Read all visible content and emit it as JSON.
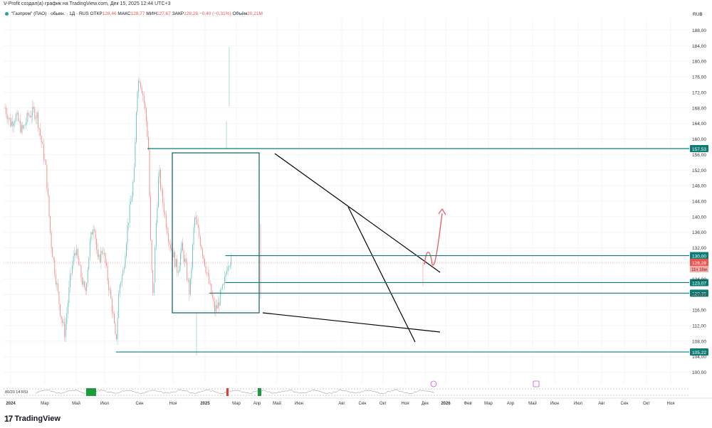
{
  "header": {
    "text": "V-Profit создал(а) график на TradingView.com, Дек 15, 2025 12:44 UTC+3"
  },
  "symbol": {
    "name": "\"Газпром\" (ПАО) · обыкн. · 1Д · RUS",
    "open_label": "ОТКР",
    "open_value": "128,46",
    "high_label": "МАКС",
    "high_value": "128,77",
    "low_label": "МИН",
    "low_value": "127,67",
    "close_label": "ЗАКР",
    "close_value": "128,28",
    "change": "−0,40 (−0,31%)",
    "volume_label": "Объём",
    "volume_value": "20,21M"
  },
  "currency": "RUB",
  "footer": {
    "logo_mark": "17",
    "logo_text": "TradingView"
  },
  "colors": {
    "up": "#26a69a",
    "down": "#ef5350",
    "teal_line": "#0d7d74",
    "trend": "#000000",
    "arrow": "#e06060",
    "grid": "#f0f3fa",
    "text": "#131722"
  },
  "chart_data": {
    "type": "candlestick",
    "y_axis": {
      "min": 97,
      "max": 191,
      "ticks": [
        "100,00",
        "104,00",
        "108,00",
        "112,00",
        "116,00",
        "120,00",
        "124,00",
        "128,00",
        "132,00",
        "136,00",
        "140,00",
        "144,00",
        "148,00",
        "152,00",
        "156,00",
        "160,00",
        "164,00",
        "168,00",
        "172,00",
        "176,00",
        "180,00",
        "184,00",
        "188,00"
      ],
      "scale": "linear"
    },
    "x_axis": {
      "labels": [
        "2024",
        "Мар",
        "Май",
        "Июл",
        "Сен",
        "Ноя",
        "2025",
        "Мар",
        "Апр",
        "Май",
        "Июн",
        "Авг",
        "Сен",
        "Окт",
        "Ноя",
        "Дек",
        "2026",
        "Фев",
        "Мар",
        "Апр",
        "Май",
        "Июн",
        "Июл",
        "Авг",
        "Сен",
        "Окт",
        "Ноя"
      ]
    },
    "price_path": {
      "note": "Approximate daily close path read from the chart",
      "anchors": [
        [
          "2024-01-02",
          168
        ],
        [
          "2024-01-20",
          164
        ],
        [
          "2024-02-05",
          166
        ],
        [
          "2024-02-25",
          162
        ],
        [
          "2024-03-15",
          166
        ],
        [
          "2024-04-01",
          167
        ],
        [
          "2024-04-12",
          166
        ],
        [
          "2024-04-28",
          158
        ],
        [
          "2024-05-10",
          152
        ],
        [
          "2024-05-25",
          134
        ],
        [
          "2024-06-10",
          124
        ],
        [
          "2024-06-25",
          115
        ],
        [
          "2024-07-08",
          110
        ],
        [
          "2024-07-25",
          124
        ],
        [
          "2024-08-10",
          132
        ],
        [
          "2024-08-25",
          126
        ],
        [
          "2024-09-10",
          120
        ],
        [
          "2024-09-25",
          133
        ],
        [
          "2024-10-08",
          139
        ],
        [
          "2024-10-20",
          128
        ],
        [
          "2024-11-05",
          132
        ],
        [
          "2024-11-20",
          124
        ],
        [
          "2024-12-05",
          116
        ],
        [
          "2024-12-16",
          107
        ],
        [
          "2024-12-26",
          122
        ],
        [
          "2025-01-08",
          126
        ],
        [
          "2025-01-22",
          138
        ],
        [
          "2025-02-03",
          145
        ],
        [
          "2025-02-12",
          152
        ],
        [
          "2025-02-20",
          173
        ],
        [
          "2025-02-28",
          176
        ],
        [
          "2025-03-10",
          172
        ],
        [
          "2025-03-20",
          166
        ],
        [
          "2025-03-28",
          158
        ],
        [
          "2025-04-05",
          130
        ],
        [
          "2025-04-12",
          118
        ],
        [
          "2025-04-20",
          136
        ],
        [
          "2025-04-30",
          152
        ],
        [
          "2025-05-08",
          146
        ],
        [
          "2025-05-20",
          140
        ],
        [
          "2025-06-01",
          134
        ],
        [
          "2025-06-15",
          130
        ],
        [
          "2025-06-28",
          126
        ],
        [
          "2025-07-10",
          132
        ],
        [
          "2025-07-22",
          128
        ],
        [
          "2025-08-05",
          120
        ],
        [
          "2025-08-20",
          140
        ],
        [
          "2025-09-01",
          136
        ],
        [
          "2025-09-12",
          132
        ],
        [
          "2025-09-22",
          128
        ],
        [
          "2025-10-02",
          124
        ],
        [
          "2025-10-12",
          120
        ],
        [
          "2025-10-22",
          116
        ],
        [
          "2025-11-01",
          117
        ],
        [
          "2025-11-10",
          120
        ],
        [
          "2025-11-20",
          122
        ],
        [
          "2025-12-01",
          128
        ],
        [
          "2025-12-08",
          129
        ],
        [
          "2025-12-15",
          128.28
        ]
      ]
    },
    "levels": [
      {
        "label": "157,53",
        "value": 157.53,
        "from": "2025-03-25"
      },
      {
        "label": "130,00",
        "value": 130.0,
        "from": "2025-11-25"
      },
      {
        "label": "123,07",
        "value": 123.07,
        "from": "2025-11-25"
      },
      {
        "label": "120,35",
        "value": 120.35,
        "from": "2025-10-05"
      },
      {
        "label": "105,22",
        "value": 105.22,
        "from": "2024-12-16"
      }
    ],
    "current_price": {
      "label": "128,28",
      "value": 128.28,
      "countdown": "11ч 16м"
    },
    "indicator": {
      "label": "80/20 14 RSI"
    }
  }
}
